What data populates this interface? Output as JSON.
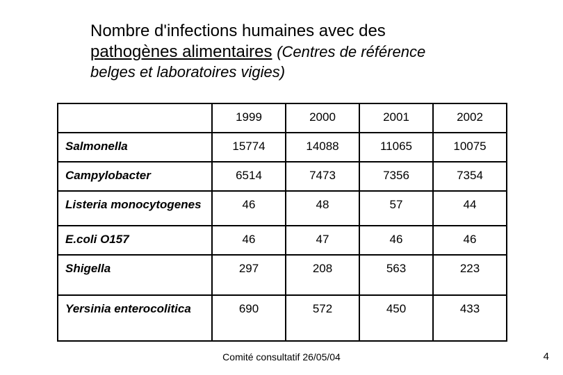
{
  "title": {
    "line1_a": "Nombre d'infections humaines avec des",
    "line1_b": "pathogènes alimentaires",
    "sub_a": "(Centres de référence",
    "sub_b": "belges et laboratoires vigies)"
  },
  "table": {
    "header_blank": "",
    "years": [
      "1999",
      "2000",
      "2001",
      "2002"
    ],
    "rows": [
      {
        "label": "Salmonella",
        "v": [
          "15774",
          "14088",
          "11065",
          "10075"
        ],
        "cls": "r-sm"
      },
      {
        "label": "Campylobacter",
        "v": [
          "6514",
          "7473",
          "7356",
          "7354"
        ],
        "cls": "r-sm"
      },
      {
        "label": "Listeria monocytogenes",
        "v": [
          "46",
          "48",
          "57",
          "44"
        ],
        "cls": "r-md"
      },
      {
        "label": "E.coli O157",
        "v": [
          "46",
          "47",
          "46",
          "46"
        ],
        "cls": "r-sm"
      },
      {
        "label": "Shigella",
        "v": [
          "297",
          "208",
          "563",
          "223"
        ],
        "cls": "r-lg"
      },
      {
        "label": "Yersinia enterocolitica",
        "v": [
          "690",
          "572",
          "450",
          "433"
        ],
        "cls": "r-xl"
      }
    ]
  },
  "footer": "Comité consultatif 26/05/04",
  "slidenum": "4"
}
